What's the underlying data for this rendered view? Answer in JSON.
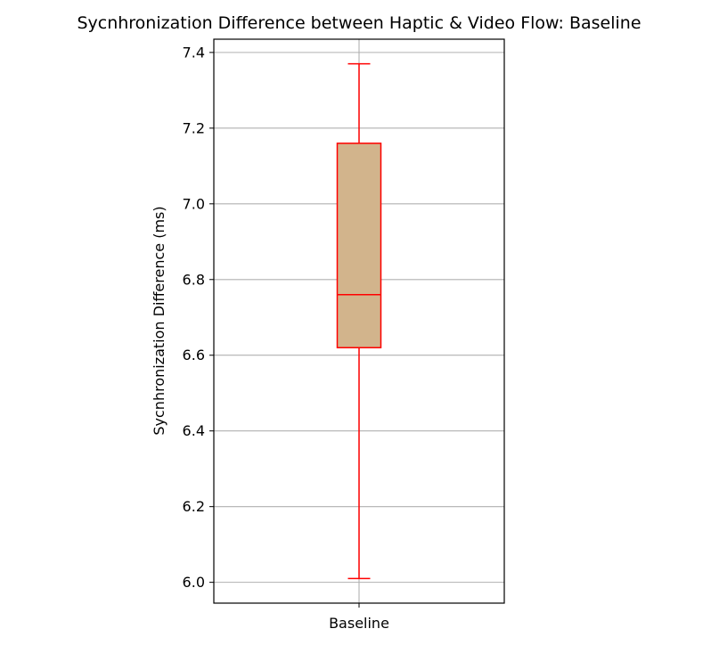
{
  "chart_data": {
    "type": "box",
    "title": "Sycnhronization Difference between Haptic & Video Flow: Baseline",
    "xlabel": "",
    "ylabel": "Sycnhronization Difference (ms)",
    "categories": [
      "Baseline"
    ],
    "boxes": [
      {
        "category": "Baseline",
        "whisker_low": 6.01,
        "q1": 6.62,
        "median": 6.76,
        "q3": 7.16,
        "whisker_high": 7.37
      }
    ],
    "yticks": [
      "6.0",
      "6.2",
      "6.4",
      "6.6",
      "6.8",
      "7.0",
      "7.2",
      "7.4"
    ],
    "ylim": [
      5.945,
      7.435
    ],
    "grid": true,
    "colors": {
      "box_fill": "#d2b48c",
      "box_edge": "#ff0000",
      "grid": "#b0b0b0",
      "axes": "#000000"
    }
  }
}
